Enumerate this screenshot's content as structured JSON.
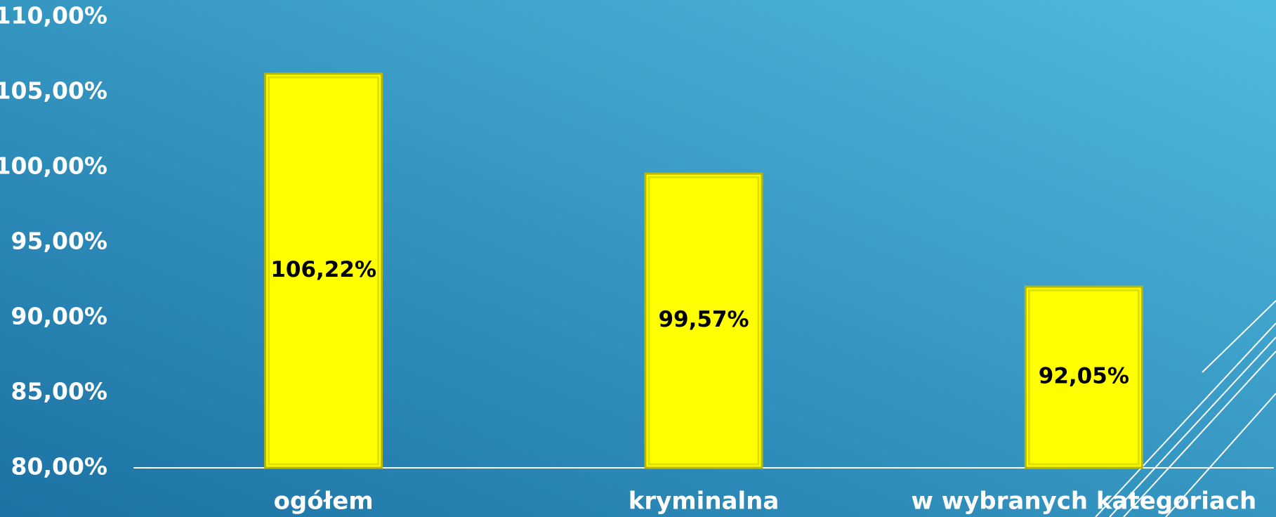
{
  "chart_data": {
    "type": "bar",
    "categories": [
      "ogółem",
      "kryminalna",
      "w wybranych kategoriach"
    ],
    "values": [
      106.22,
      99.57,
      92.05
    ],
    "value_labels": [
      "106,22%",
      "99,57%",
      "92,05%"
    ],
    "color": "#ffff00",
    "ylim": [
      80,
      110
    ],
    "yticks": [
      {
        "value": 80,
        "label": "80,00%"
      },
      {
        "value": 85,
        "label": "85,00%"
      },
      {
        "value": 90,
        "label": "90,00%"
      },
      {
        "value": 95,
        "label": "95,00%"
      },
      {
        "value": 100,
        "label": "100,00%"
      },
      {
        "value": 105,
        "label": "105,00%"
      },
      {
        "value": 110,
        "label": "110,00%"
      }
    ],
    "grid": false
  }
}
